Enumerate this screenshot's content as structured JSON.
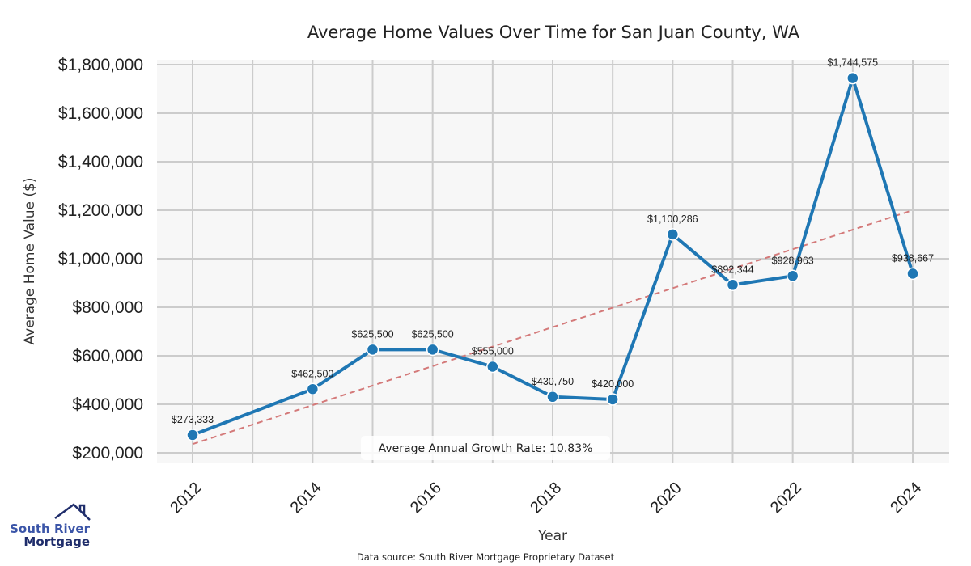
{
  "chart_data": {
    "type": "line",
    "title": "Average Home Values Over Time for San Juan County, WA",
    "xlabel": "Year",
    "ylabel": "Average Home Value ($)",
    "x": [
      2012,
      2014,
      2015,
      2016,
      2017,
      2018,
      2019,
      2020,
      2021,
      2022,
      2023,
      2024
    ],
    "series": [
      {
        "name": "Average Home Value",
        "color": "#1f77b4",
        "values": [
          273333,
          462500,
          625500,
          625500,
          555000,
          430750,
          420000,
          1100286,
          892344,
          928963,
          1744575,
          938667
        ],
        "labels": [
          "$273,333",
          "$462,500",
          "$625,500",
          "$625,500",
          "$555,000",
          "$430,750",
          "$420,000",
          "$1,100,286",
          "$892,344",
          "$928,963",
          "$1,744,575",
          "$938,667"
        ]
      }
    ],
    "trendline": {
      "color": "#d47a7a",
      "style": "dashed",
      "start": [
        2012,
        236000
      ],
      "end": [
        2024,
        1200000
      ]
    },
    "xlim": [
      2011.4,
      2024.6
    ],
    "ylim": [
      180000,
      1820000
    ],
    "xticks": [
      2012,
      2014,
      2016,
      2018,
      2020,
      2022,
      2024
    ],
    "xtick_labels": [
      "2012",
      "2014",
      "2016",
      "2018",
      "2020",
      "2022",
      "2024"
    ],
    "x_gridlines": [
      2012,
      2013,
      2014,
      2015,
      2016,
      2017,
      2018,
      2019,
      2020,
      2021,
      2022,
      2023,
      2024
    ],
    "yticks": [
      200000,
      400000,
      600000,
      800000,
      1000000,
      1200000,
      1400000,
      1600000,
      1800000
    ],
    "ytick_labels": [
      "$200,000",
      "$400,000",
      "$600,000",
      "$800,000",
      "$1,000,000",
      "$1,200,000",
      "$1,400,000",
      "$1,600,000",
      "$1,800,000"
    ],
    "grid": true,
    "annotation": "Average Annual Growth Rate: 10.83%",
    "source": "Data source: South River Mortgage Proprietary Dataset"
  },
  "logo": {
    "line1": "South River",
    "line2": "Mortgage"
  }
}
